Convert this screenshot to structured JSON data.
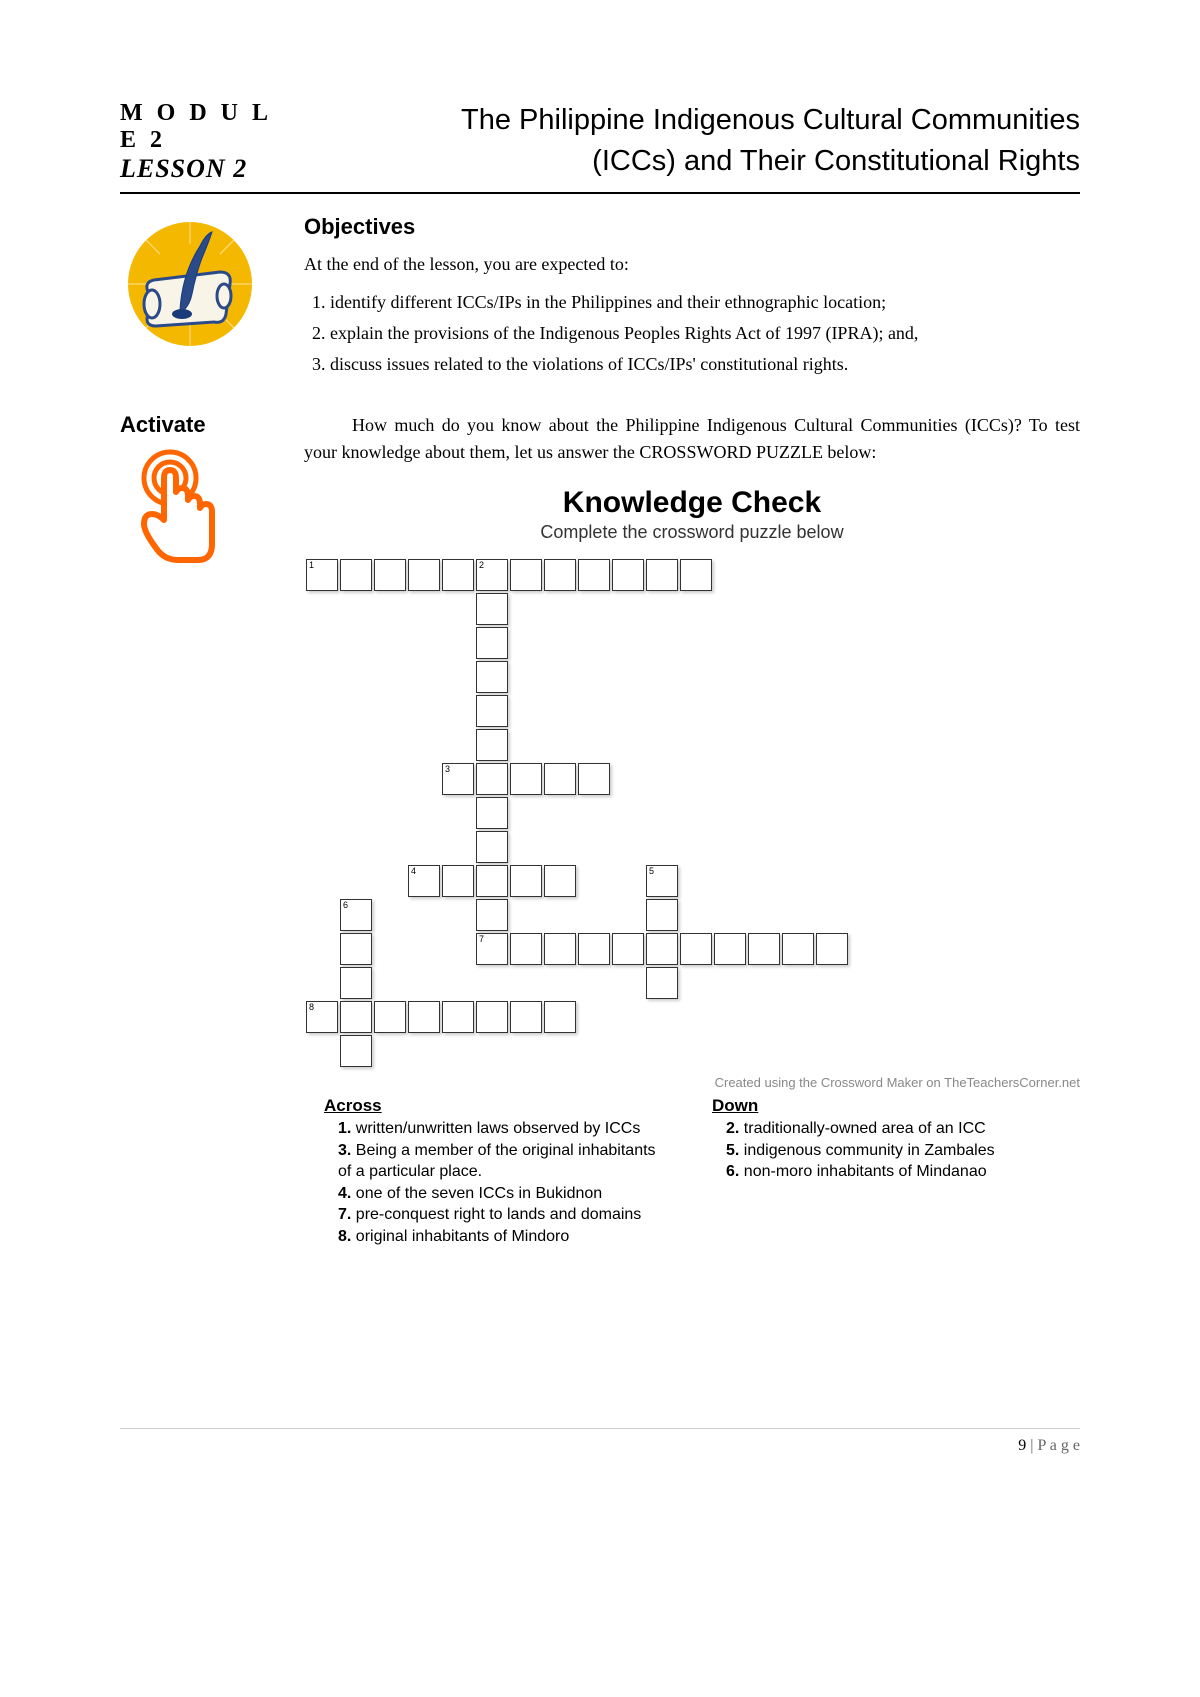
{
  "header": {
    "module": "M O D U L E  2",
    "lesson": "LESSON 2",
    "title_line1": "The Philippine Indigenous Cultural Communities",
    "title_line2": "(ICCs) and Their Constitutional Rights"
  },
  "objectives": {
    "heading": "Objectives",
    "intro": "At the end of the lesson, you are expected to:",
    "items": [
      "identify different ICCs/IPs in the Philippines and their ethnographic location;",
      "explain the provisions of the Indigenous Peoples Rights Act of 1997 (IPRA); and,",
      "discuss issues related to the violations of ICCs/IPs' constitutional rights."
    ]
  },
  "activate": {
    "label": "Activate",
    "text": "How much do you know about the Philippine Indigenous Cultural Communities (ICCs)? To test your knowledge about them, let us answer the CROSSWORD PUZZLE below:"
  },
  "knowledge_check": {
    "title": "Knowledge Check",
    "subtitle": "Complete the crossword puzzle below",
    "credit": "Created using the Crossword Maker on TheTeachersCorner.net",
    "grid": {
      "rows": 15,
      "cols": 16,
      "cell_size": 32,
      "border_color": "#333333",
      "shadow_color": "rgba(0,0,0,0.2)",
      "cells": [
        {
          "r": 0,
          "c": 0,
          "num": "1"
        },
        {
          "r": 0,
          "c": 1
        },
        {
          "r": 0,
          "c": 2
        },
        {
          "r": 0,
          "c": 3
        },
        {
          "r": 0,
          "c": 4
        },
        {
          "r": 0,
          "c": 5,
          "num": "2"
        },
        {
          "r": 0,
          "c": 6
        },
        {
          "r": 0,
          "c": 7
        },
        {
          "r": 0,
          "c": 8
        },
        {
          "r": 0,
          "c": 9
        },
        {
          "r": 0,
          "c": 10
        },
        {
          "r": 0,
          "c": 11
        },
        {
          "r": 1,
          "c": 5
        },
        {
          "r": 2,
          "c": 5
        },
        {
          "r": 3,
          "c": 5
        },
        {
          "r": 4,
          "c": 5
        },
        {
          "r": 5,
          "c": 5
        },
        {
          "r": 6,
          "c": 4,
          "num": "3"
        },
        {
          "r": 6,
          "c": 5
        },
        {
          "r": 6,
          "c": 6
        },
        {
          "r": 6,
          "c": 7
        },
        {
          "r": 6,
          "c": 8
        },
        {
          "r": 7,
          "c": 5
        },
        {
          "r": 8,
          "c": 5
        },
        {
          "r": 9,
          "c": 3,
          "num": "4"
        },
        {
          "r": 9,
          "c": 4
        },
        {
          "r": 9,
          "c": 5
        },
        {
          "r": 9,
          "c": 6
        },
        {
          "r": 9,
          "c": 7
        },
        {
          "r": 9,
          "c": 10,
          "num": "5"
        },
        {
          "r": 10,
          "c": 1,
          "num": "6"
        },
        {
          "r": 10,
          "c": 5
        },
        {
          "r": 10,
          "c": 10
        },
        {
          "r": 11,
          "c": 1
        },
        {
          "r": 11,
          "c": 5,
          "num": "7"
        },
        {
          "r": 11,
          "c": 6
        },
        {
          "r": 11,
          "c": 7
        },
        {
          "r": 11,
          "c": 8
        },
        {
          "r": 11,
          "c": 9
        },
        {
          "r": 11,
          "c": 10
        },
        {
          "r": 11,
          "c": 11
        },
        {
          "r": 11,
          "c": 12
        },
        {
          "r": 11,
          "c": 13
        },
        {
          "r": 11,
          "c": 14
        },
        {
          "r": 11,
          "c": 15
        },
        {
          "r": 12,
          "c": 1
        },
        {
          "r": 12,
          "c": 10
        },
        {
          "r": 13,
          "c": 0,
          "num": "8"
        },
        {
          "r": 13,
          "c": 1
        },
        {
          "r": 13,
          "c": 2
        },
        {
          "r": 13,
          "c": 3
        },
        {
          "r": 13,
          "c": 4
        },
        {
          "r": 13,
          "c": 5
        },
        {
          "r": 13,
          "c": 6
        },
        {
          "r": 13,
          "c": 7
        },
        {
          "r": 14,
          "c": 1
        }
      ]
    },
    "clues": {
      "across_head": "Across",
      "down_head": "Down",
      "across": [
        {
          "n": "1",
          "text": "written/unwritten laws observed by ICCs"
        },
        {
          "n": "3",
          "text": "Being a member of the original inhabitants of a particular place."
        },
        {
          "n": "4",
          "text": "one of the seven ICCs in Bukidnon"
        },
        {
          "n": "7",
          "text": "pre-conquest right to lands and domains"
        },
        {
          "n": "8",
          "text": "original inhabitants of Mindoro"
        }
      ],
      "down": [
        {
          "n": "2",
          "text": "traditionally-owned area of an ICC"
        },
        {
          "n": "5",
          "text": "indigenous community in Zambales"
        },
        {
          "n": "6",
          "text": "non-moro inhabitants of Mindanao"
        }
      ]
    }
  },
  "footer": {
    "page_number": "9",
    "page_label": "P a g e"
  },
  "colors": {
    "text": "#000000",
    "muted": "#888888",
    "rule": "#000000",
    "footer_rule": "#cccccc",
    "tap_icon": "#ff6600",
    "scroll_bg": "#f5b800",
    "scroll_paper": "#f8f5e8",
    "scroll_quill": "#2a4a8a"
  }
}
